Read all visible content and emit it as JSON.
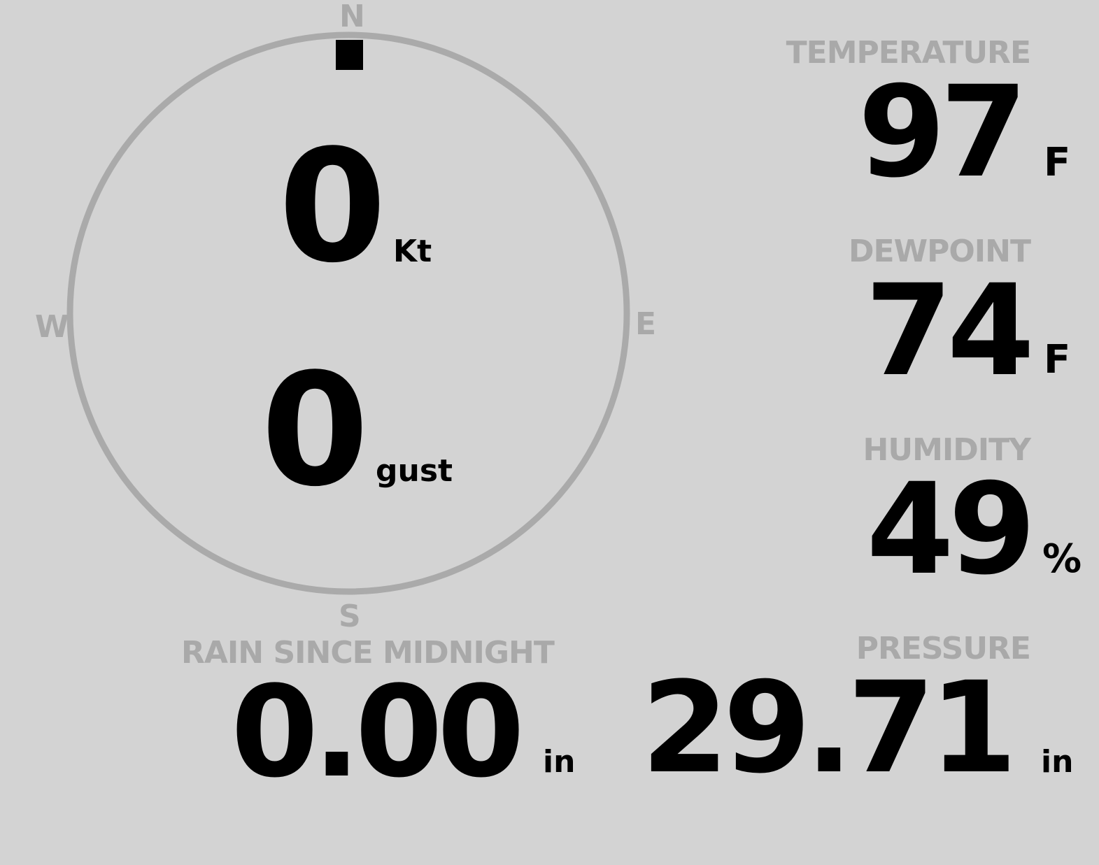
{
  "compass": {
    "directions": {
      "n": "N",
      "e": "E",
      "s": "S",
      "w": "W"
    },
    "wind_speed": "0",
    "wind_speed_unit": "Kt",
    "gust": "0",
    "gust_unit": "gust",
    "wind_direction_deg": 0,
    "colors": {
      "ring": "#aaaaaa",
      "marker": "#000000"
    }
  },
  "temperature": {
    "label": "TEMPERATURE",
    "value": "97",
    "unit": "F"
  },
  "dewpoint": {
    "label": "DEWPOINT",
    "value": "74",
    "unit": "F"
  },
  "humidity": {
    "label": "HUMIDITY",
    "value": "49",
    "unit": "%"
  },
  "pressure": {
    "label": "PRESSURE",
    "value": "29.71",
    "unit": "in"
  },
  "rain": {
    "label": "RAIN SINCE MIDNIGHT",
    "value": "0.00",
    "unit": "in"
  },
  "colors": {
    "background": "#d3d3d3",
    "label": "#a9a9a9",
    "value": "#000000"
  }
}
